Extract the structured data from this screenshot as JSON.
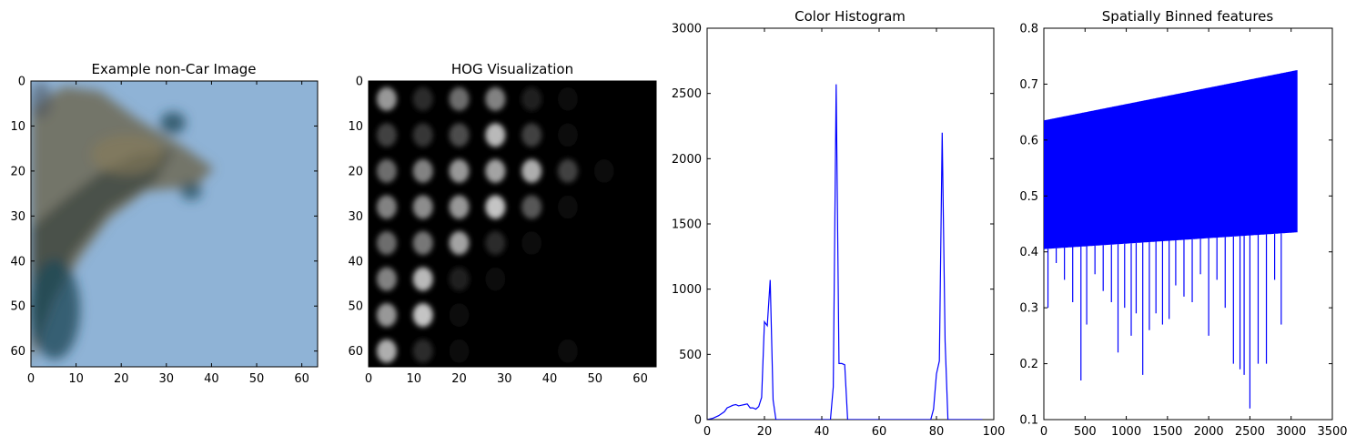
{
  "chart_data": [
    {
      "type": "image",
      "title": "Example non-Car Image",
      "xlim": [
        0,
        63.5
      ],
      "ylim": [
        63.5,
        0
      ],
      "xticks": [
        0,
        10,
        20,
        30,
        40,
        50,
        60
      ],
      "yticks": [
        0,
        10,
        20,
        30,
        40,
        50,
        60
      ],
      "colors": {
        "sky": "#8fb3d6",
        "branch_dark": "#2f3b3a",
        "branch_mid": "#6f6a55",
        "foliage": "#1f4a5a"
      }
    },
    {
      "type": "image",
      "title": "HOG Visualization",
      "xlim": [
        0,
        63.5
      ],
      "ylim": [
        63.5,
        0
      ],
      "xticks": [
        0,
        10,
        20,
        30,
        40,
        50,
        60
      ],
      "yticks": [
        0,
        10,
        20,
        30,
        40,
        50,
        60
      ],
      "cells": {
        "centers": [
          4,
          12,
          20,
          28,
          36,
          44,
          52,
          60
        ],
        "intensity": [
          [
            0.7,
            0.2,
            0.5,
            0.6,
            0.15,
            0.05,
            0.0,
            0.0
          ],
          [
            0.3,
            0.25,
            0.35,
            0.85,
            0.3,
            0.05,
            0.0,
            0.0
          ],
          [
            0.5,
            0.6,
            0.7,
            0.75,
            0.8,
            0.3,
            0.05,
            0.0
          ],
          [
            0.6,
            0.65,
            0.7,
            0.9,
            0.4,
            0.05,
            0.0,
            0.0
          ],
          [
            0.5,
            0.55,
            0.75,
            0.2,
            0.05,
            0.0,
            0.0,
            0.0
          ],
          [
            0.6,
            0.85,
            0.15,
            0.05,
            0.0,
            0.0,
            0.0,
            0.0
          ],
          [
            0.7,
            0.9,
            0.05,
            0.0,
            0.0,
            0.0,
            0.0,
            0.0
          ],
          [
            0.8,
            0.2,
            0.05,
            0.0,
            0.0,
            0.05,
            0.0,
            0.0
          ]
        ]
      }
    },
    {
      "type": "line",
      "title": "Color Histogram",
      "xlim": [
        0,
        100
      ],
      "ylim": [
        0,
        3000
      ],
      "xticks": [
        0,
        20,
        40,
        60,
        80,
        100
      ],
      "yticks": [
        0,
        500,
        1000,
        1500,
        2000,
        2500,
        3000
      ],
      "series": [
        {
          "color": "#0000ff",
          "x": [
            0,
            2,
            4,
            6,
            7,
            8,
            9,
            10,
            11,
            12,
            13,
            14,
            15,
            16,
            17,
            18,
            19,
            20,
            21,
            22,
            23,
            24,
            25,
            30,
            40,
            43,
            44,
            45,
            46,
            47,
            48,
            49,
            50,
            60,
            70,
            78,
            79,
            80,
            81,
            82,
            83,
            84,
            85,
            90,
            96
          ],
          "y": [
            0,
            10,
            30,
            60,
            90,
            100,
            110,
            115,
            105,
            110,
            115,
            120,
            90,
            90,
            80,
            100,
            170,
            750,
            720,
            1070,
            150,
            0,
            0,
            0,
            0,
            0,
            250,
            2570,
            430,
            430,
            420,
            0,
            0,
            0,
            0,
            0,
            80,
            350,
            450,
            2200,
            600,
            0,
            0,
            0,
            0
          ]
        }
      ]
    },
    {
      "type": "line",
      "title": "Spatially Binned features",
      "xlim": [
        0,
        3500
      ],
      "ylim": [
        0.1,
        0.8
      ],
      "xticks": [
        0,
        500,
        1000,
        1500,
        2000,
        2500,
        3000,
        3500
      ],
      "yticks": [
        0.1,
        0.2,
        0.3,
        0.4,
        0.5,
        0.6,
        0.7,
        0.8
      ],
      "series": [
        {
          "color": "#0000ff",
          "n_points": 3072,
          "upper_trend": [
            [
              0,
              0.635
            ],
            [
              3072,
              0.725
            ]
          ],
          "lower_trend": [
            [
              0,
              0.405
            ],
            [
              3072,
              0.435
            ]
          ],
          "dips": [
            [
              50,
              0.3
            ],
            [
              150,
              0.38
            ],
            [
              250,
              0.35
            ],
            [
              350,
              0.31
            ],
            [
              450,
              0.17
            ],
            [
              520,
              0.27
            ],
            [
              620,
              0.36
            ],
            [
              720,
              0.33
            ],
            [
              820,
              0.31
            ],
            [
              900,
              0.22
            ],
            [
              980,
              0.3
            ],
            [
              1060,
              0.25
            ],
            [
              1120,
              0.29
            ],
            [
              1200,
              0.18
            ],
            [
              1280,
              0.26
            ],
            [
              1360,
              0.29
            ],
            [
              1440,
              0.27
            ],
            [
              1520,
              0.28
            ],
            [
              1600,
              0.34
            ],
            [
              1700,
              0.32
            ],
            [
              1800,
              0.31
            ],
            [
              1900,
              0.36
            ],
            [
              2000,
              0.25
            ],
            [
              2100,
              0.35
            ],
            [
              2200,
              0.3
            ],
            [
              2300,
              0.2
            ],
            [
              2380,
              0.19
            ],
            [
              2430,
              0.18
            ],
            [
              2500,
              0.12
            ],
            [
              2600,
              0.2
            ],
            [
              2700,
              0.2
            ],
            [
              2800,
              0.35
            ],
            [
              2880,
              0.27
            ]
          ]
        }
      ]
    }
  ]
}
